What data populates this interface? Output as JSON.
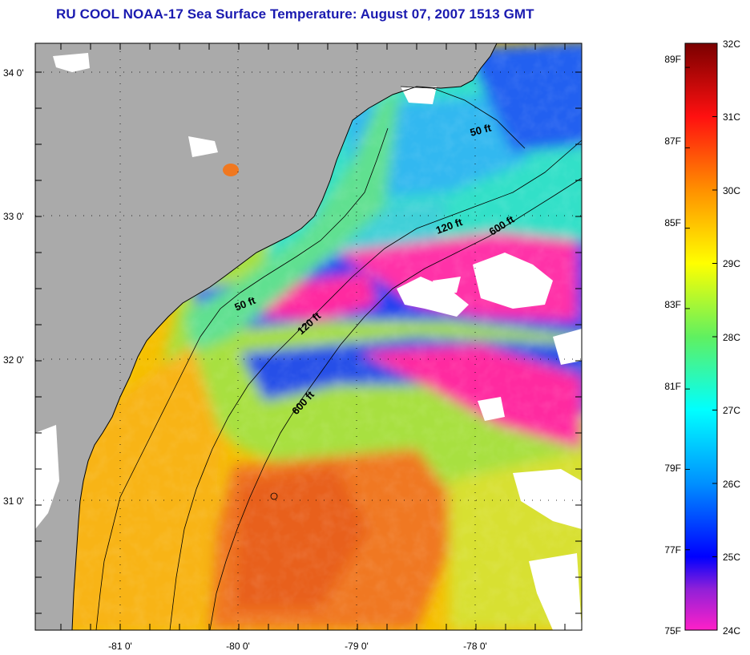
{
  "title": "RU COOL  NOAA-17  Sea Surface Temperature:  August 07, 2007 1513 GMT",
  "map": {
    "lat_ticks": [
      "34 0'",
      "33 0'",
      "32 0'",
      "31 0'"
    ],
    "lon_ticks": [
      "-81 0'",
      "-80 0'",
      "-79 0'",
      "-78 0'"
    ],
    "isobath_labels": [
      "50 ft",
      "120 ft",
      "600 ft",
      "50 ft",
      "120 ft",
      "600 ft"
    ],
    "colors": {
      "land": "#aaaaaa",
      "cloud": "#ffffff",
      "coastline": "#000000"
    }
  },
  "colorbar": {
    "celsius_labels": [
      "32C",
      "31C",
      "30C",
      "29C",
      "28C",
      "27C",
      "26C",
      "25C",
      "24C"
    ],
    "fahrenheit_labels": [
      "89F",
      "87F",
      "85F",
      "83F",
      "81F",
      "79F",
      "77F",
      "75F"
    ],
    "celsius_range": [
      24,
      32
    ],
    "fahrenheit_range": [
      75,
      89.6
    ]
  }
}
